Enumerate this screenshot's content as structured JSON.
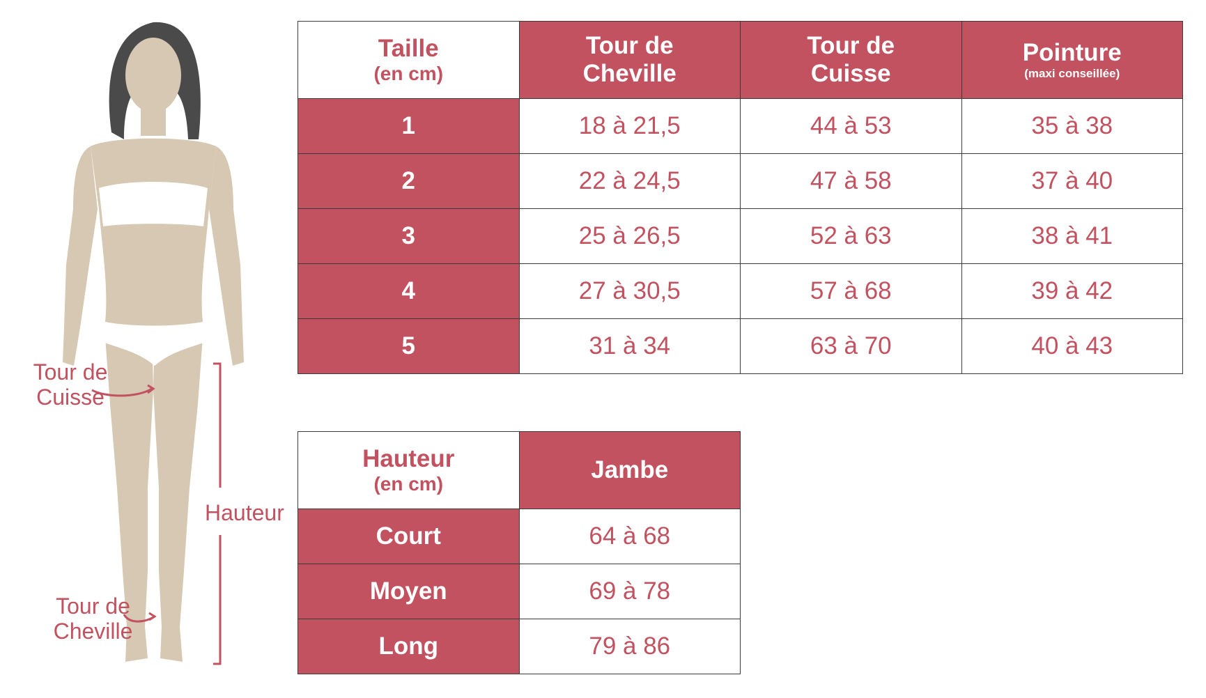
{
  "figure": {
    "labels": {
      "cuisse": "Tour de\nCuisse",
      "cheville": "Tour de\nCheville",
      "hauteur": "Hauteur"
    }
  },
  "size_table": {
    "headers": [
      {
        "main": "Taille",
        "sub": "(en cm)"
      },
      {
        "main": "Tour de\nCheville"
      },
      {
        "main": "Tour de\nCuisse"
      },
      {
        "main": "Pointure",
        "small": "(maxi conseillée)"
      }
    ],
    "rows": [
      {
        "size": "1",
        "cheville": "18 à 21,5",
        "cuisse": "44 à 53",
        "pointure": "35 à 38"
      },
      {
        "size": "2",
        "cheville": "22 à 24,5",
        "cuisse": "47 à 58",
        "pointure": "37 à 40"
      },
      {
        "size": "3",
        "cheville": "25 à 26,5",
        "cuisse": "52 à 63",
        "pointure": "38 à 41"
      },
      {
        "size": "4",
        "cheville": "27 à 30,5",
        "cuisse": "57 à 68",
        "pointure": "39 à 42"
      },
      {
        "size": "5",
        "cheville": "31 à 34",
        "cuisse": "63 à 70",
        "pointure": "40 à 43"
      }
    ]
  },
  "height_table": {
    "headers": [
      {
        "main": "Hauteur",
        "sub": "(en cm)"
      },
      {
        "main": "Jambe"
      }
    ],
    "rows": [
      {
        "label": "Court",
        "jambe": "64 à 68"
      },
      {
        "label": "Moyen",
        "jambe": "69 à 78"
      },
      {
        "label": "Long",
        "jambe": "79 à 86"
      }
    ]
  },
  "colors": {
    "accent": "#c25260",
    "skin": "#d6c8b2",
    "hair": "#4a4a4a",
    "underwear": "#ffffff",
    "border": "#3a3a3a"
  }
}
